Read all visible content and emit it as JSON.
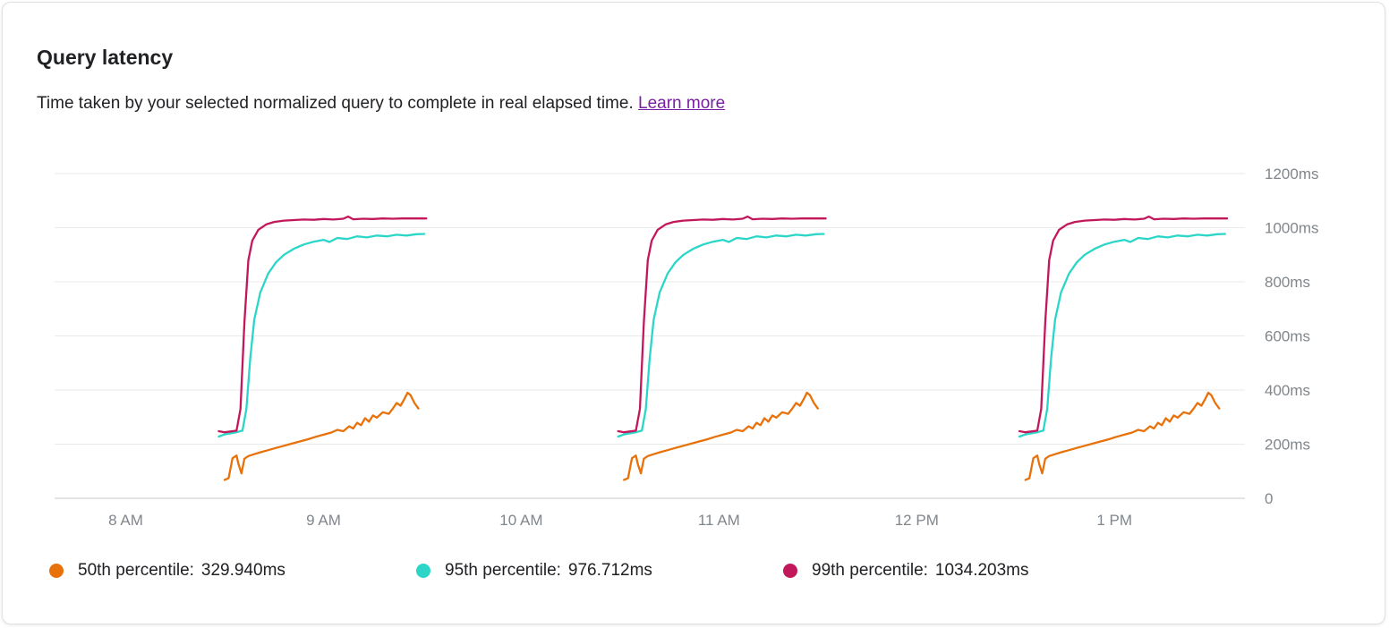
{
  "card": {
    "title": "Query latency",
    "subtitle": "Time taken by your selected normalized query to complete in real elapsed time.",
    "learn_more_label": "Learn more",
    "link_color": "#7b1fa2"
  },
  "legend": {
    "items": [
      {
        "label": "50th percentile:",
        "value": "329.940ms"
      },
      {
        "label": "95th percentile:",
        "value": "976.712ms"
      },
      {
        "label": "99th percentile:",
        "value": "1034.203ms"
      }
    ]
  },
  "chart_data": {
    "type": "line",
    "title": "Query latency",
    "grid": "horizontal",
    "legend_position": "bottom",
    "x_axis": {
      "range": [
        7.64,
        13.66
      ],
      "ticks": [
        8,
        9,
        10,
        11,
        12,
        13
      ],
      "tick_labels": [
        "8 AM",
        "9 AM",
        "10 AM",
        "11 AM",
        "12 PM",
        "1 PM"
      ]
    },
    "y_axis": {
      "range": [
        0,
        1240
      ],
      "unit": "ms",
      "ticks": [
        0,
        200,
        400,
        600,
        800,
        1000,
        1200
      ],
      "tick_labels": [
        "0",
        "200ms",
        "400ms",
        "600ms",
        "800ms",
        "1000ms",
        "1200ms"
      ]
    },
    "burst_starts": [
      8.47,
      10.49,
      12.52
    ],
    "note": "Data occurs in three bursts of ~1 hour; t = burst_start + u hours for each [u, ms] point.",
    "series": [
      {
        "id": "p50",
        "name": "50th percentile",
        "color": "#e8710a",
        "latest_value_ms": 329.94,
        "burst_points": [
          [
            0.03,
            68
          ],
          [
            0.05,
            74
          ],
          [
            0.07,
            148
          ],
          [
            0.09,
            158
          ],
          [
            0.1,
            126
          ],
          [
            0.115,
            92
          ],
          [
            0.13,
            146
          ],
          [
            0.15,
            156
          ],
          [
            0.18,
            163
          ],
          [
            0.21,
            170
          ],
          [
            0.25,
            178
          ],
          [
            0.29,
            186
          ],
          [
            0.33,
            194
          ],
          [
            0.37,
            202
          ],
          [
            0.41,
            210
          ],
          [
            0.45,
            218
          ],
          [
            0.49,
            227
          ],
          [
            0.53,
            235
          ],
          [
            0.57,
            243
          ],
          [
            0.6,
            253
          ],
          [
            0.63,
            248
          ],
          [
            0.66,
            266
          ],
          [
            0.68,
            258
          ],
          [
            0.7,
            279
          ],
          [
            0.72,
            270
          ],
          [
            0.74,
            296
          ],
          [
            0.76,
            283
          ],
          [
            0.78,
            306
          ],
          [
            0.8,
            298
          ],
          [
            0.83,
            318
          ],
          [
            0.86,
            312
          ],
          [
            0.88,
            331
          ],
          [
            0.9,
            352
          ],
          [
            0.92,
            342
          ],
          [
            0.94,
            368
          ],
          [
            0.955,
            390
          ],
          [
            0.97,
            381
          ],
          [
            0.99,
            352
          ],
          [
            1.01,
            332
          ]
        ]
      },
      {
        "id": "p95",
        "name": "95th percentile",
        "color": "#2bd6c9",
        "latest_value_ms": 976.712,
        "burst_points": [
          [
            0.0,
            228
          ],
          [
            0.03,
            236
          ],
          [
            0.06,
            240
          ],
          [
            0.09,
            244
          ],
          [
            0.12,
            250
          ],
          [
            0.14,
            330
          ],
          [
            0.16,
            520
          ],
          [
            0.18,
            660
          ],
          [
            0.21,
            760
          ],
          [
            0.25,
            830
          ],
          [
            0.29,
            872
          ],
          [
            0.33,
            900
          ],
          [
            0.38,
            922
          ],
          [
            0.43,
            938
          ],
          [
            0.48,
            948
          ],
          [
            0.53,
            955
          ],
          [
            0.56,
            947
          ],
          [
            0.6,
            962
          ],
          [
            0.65,
            958
          ],
          [
            0.7,
            968
          ],
          [
            0.75,
            964
          ],
          [
            0.8,
            971
          ],
          [
            0.85,
            968
          ],
          [
            0.9,
            974
          ],
          [
            0.95,
            971
          ],
          [
            1.0,
            976
          ],
          [
            1.04,
            977
          ]
        ]
      },
      {
        "id": "p99",
        "name": "99th percentile",
        "color": "#c2185b",
        "latest_value_ms": 1034.203,
        "burst_points": [
          [
            0.0,
            248
          ],
          [
            0.03,
            244
          ],
          [
            0.06,
            247
          ],
          [
            0.09,
            250
          ],
          [
            0.11,
            330
          ],
          [
            0.13,
            650
          ],
          [
            0.15,
            880
          ],
          [
            0.17,
            952
          ],
          [
            0.2,
            992
          ],
          [
            0.24,
            1012
          ],
          [
            0.28,
            1021
          ],
          [
            0.33,
            1026
          ],
          [
            0.38,
            1028
          ],
          [
            0.43,
            1030
          ],
          [
            0.48,
            1029
          ],
          [
            0.53,
            1032
          ],
          [
            0.58,
            1030
          ],
          [
            0.63,
            1033
          ],
          [
            0.655,
            1041
          ],
          [
            0.68,
            1031
          ],
          [
            0.73,
            1033
          ],
          [
            0.78,
            1032
          ],
          [
            0.83,
            1034
          ],
          [
            0.88,
            1033
          ],
          [
            0.93,
            1034
          ],
          [
            1.0,
            1034
          ],
          [
            1.05,
            1034
          ]
        ]
      }
    ]
  }
}
